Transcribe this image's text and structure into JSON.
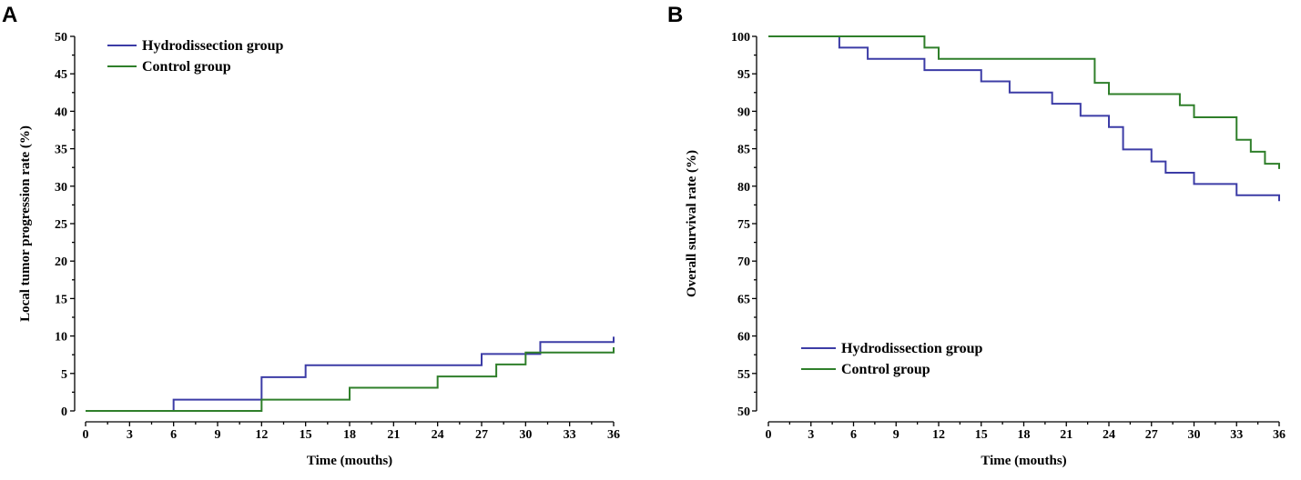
{
  "chart_data": [
    {
      "panel_label": "A",
      "type": "line",
      "step": true,
      "title": "",
      "xlabel": "Time (mouths)",
      "ylabel": "Local tumor progression rate (%)",
      "xlim": [
        0,
        36
      ],
      "ylim": [
        0,
        50
      ],
      "xticks": [
        0,
        3,
        6,
        9,
        12,
        15,
        18,
        21,
        24,
        27,
        30,
        33,
        36
      ],
      "yticks": [
        0,
        5,
        10,
        15,
        20,
        25,
        30,
        35,
        40,
        45,
        50
      ],
      "legend_position": "top-left",
      "series": [
        {
          "name": "Hydrodissection group",
          "color": "#3c3ca6",
          "x": [
            0,
            6,
            12,
            15,
            27,
            31,
            36
          ],
          "y": [
            0,
            1.5,
            4.5,
            6.1,
            7.6,
            9.2,
            9.9
          ]
        },
        {
          "name": "Control group",
          "color": "#2f7f2a",
          "x": [
            0,
            12,
            18,
            24,
            28,
            30,
            36
          ],
          "y": [
            0,
            1.5,
            3.1,
            4.6,
            6.2,
            7.8,
            8.5
          ]
        }
      ]
    },
    {
      "panel_label": "B",
      "type": "line",
      "step": true,
      "title": "",
      "xlabel": "Time (mouths)",
      "ylabel": "Overall survival rate (%)",
      "xlim": [
        0,
        36
      ],
      "ylim": [
        50,
        100
      ],
      "xticks": [
        0,
        3,
        6,
        9,
        12,
        15,
        18,
        21,
        24,
        27,
        30,
        33,
        36
      ],
      "yticks": [
        50,
        55,
        60,
        65,
        70,
        75,
        80,
        85,
        90,
        95,
        100
      ],
      "legend_position": "bottom-left",
      "series": [
        {
          "name": "Hydrodissection group",
          "color": "#3c3ca6",
          "x": [
            0,
            5,
            7,
            11,
            15,
            17,
            20,
            22,
            24,
            25,
            27,
            28,
            30,
            33,
            36
          ],
          "y": [
            100,
            98.5,
            97,
            95.5,
            94,
            92.5,
            91,
            89.4,
            87.9,
            84.9,
            83.3,
            81.8,
            80.3,
            78.8,
            78
          ]
        },
        {
          "name": "Control group",
          "color": "#2f7f2a",
          "x": [
            0,
            11,
            12,
            23,
            24,
            29,
            30,
            33,
            34,
            35,
            36
          ],
          "y": [
            100,
            98.5,
            97,
            93.8,
            92.3,
            90.8,
            89.2,
            86.2,
            84.6,
            83,
            82.3
          ]
        }
      ]
    }
  ]
}
